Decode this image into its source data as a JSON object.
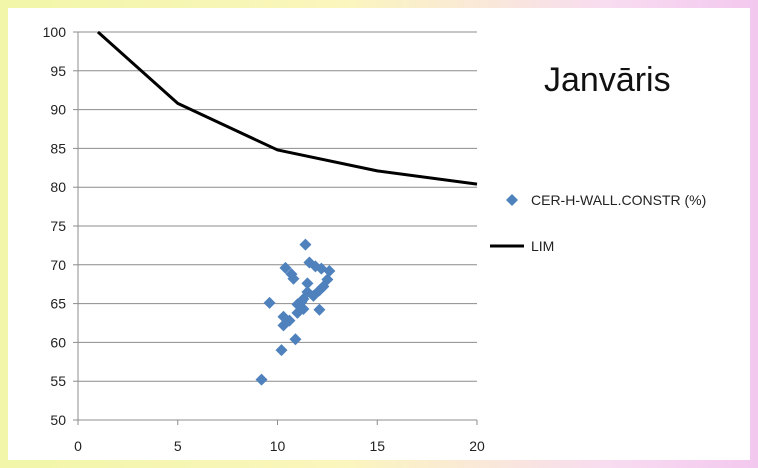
{
  "chart_data": {
    "type": "scatter",
    "title": "Janvāris",
    "xlim": [
      0,
      20
    ],
    "ylim": [
      50,
      100
    ],
    "x_ticks": [
      0,
      5,
      10,
      15,
      20
    ],
    "y_ticks": [
      50,
      55,
      60,
      65,
      70,
      75,
      80,
      85,
      90,
      95,
      100
    ],
    "grid": "horizontal",
    "legend_position": "right",
    "colors": {
      "points": "#4f81bd",
      "line": "#000000",
      "grid": "#8c8c8c"
    },
    "series": [
      {
        "name": "CER-H-WALL.CONSTR (%)",
        "type": "scatter",
        "marker": "diamond",
        "points": [
          {
            "x": 9.2,
            "y": 55.2
          },
          {
            "x": 9.6,
            "y": 65.1
          },
          {
            "x": 10.2,
            "y": 59.0
          },
          {
            "x": 10.3,
            "y": 62.2
          },
          {
            "x": 10.3,
            "y": 63.3
          },
          {
            "x": 10.4,
            "y": 69.6
          },
          {
            "x": 10.6,
            "y": 62.8
          },
          {
            "x": 10.7,
            "y": 68.8
          },
          {
            "x": 10.8,
            "y": 68.2
          },
          {
            "x": 10.9,
            "y": 60.4
          },
          {
            "x": 11.0,
            "y": 63.8
          },
          {
            "x": 11.0,
            "y": 64.9
          },
          {
            "x": 11.2,
            "y": 65.2
          },
          {
            "x": 11.3,
            "y": 64.3
          },
          {
            "x": 11.3,
            "y": 65.6
          },
          {
            "x": 11.4,
            "y": 72.6
          },
          {
            "x": 11.5,
            "y": 66.5
          },
          {
            "x": 11.5,
            "y": 67.6
          },
          {
            "x": 11.6,
            "y": 70.3
          },
          {
            "x": 11.8,
            "y": 66.0
          },
          {
            "x": 11.9,
            "y": 69.8
          },
          {
            "x": 12.1,
            "y": 64.2
          },
          {
            "x": 12.1,
            "y": 66.7
          },
          {
            "x": 12.2,
            "y": 69.5
          },
          {
            "x": 12.3,
            "y": 67.2
          },
          {
            "x": 12.5,
            "y": 68.1
          },
          {
            "x": 12.6,
            "y": 69.2
          }
        ]
      },
      {
        "name": "LIM",
        "type": "line",
        "points": [
          {
            "x": 1,
            "y": 100
          },
          {
            "x": 5,
            "y": 90.8
          },
          {
            "x": 10,
            "y": 84.8
          },
          {
            "x": 15,
            "y": 82.1
          },
          {
            "x": 20,
            "y": 80.4
          }
        ]
      }
    ]
  }
}
